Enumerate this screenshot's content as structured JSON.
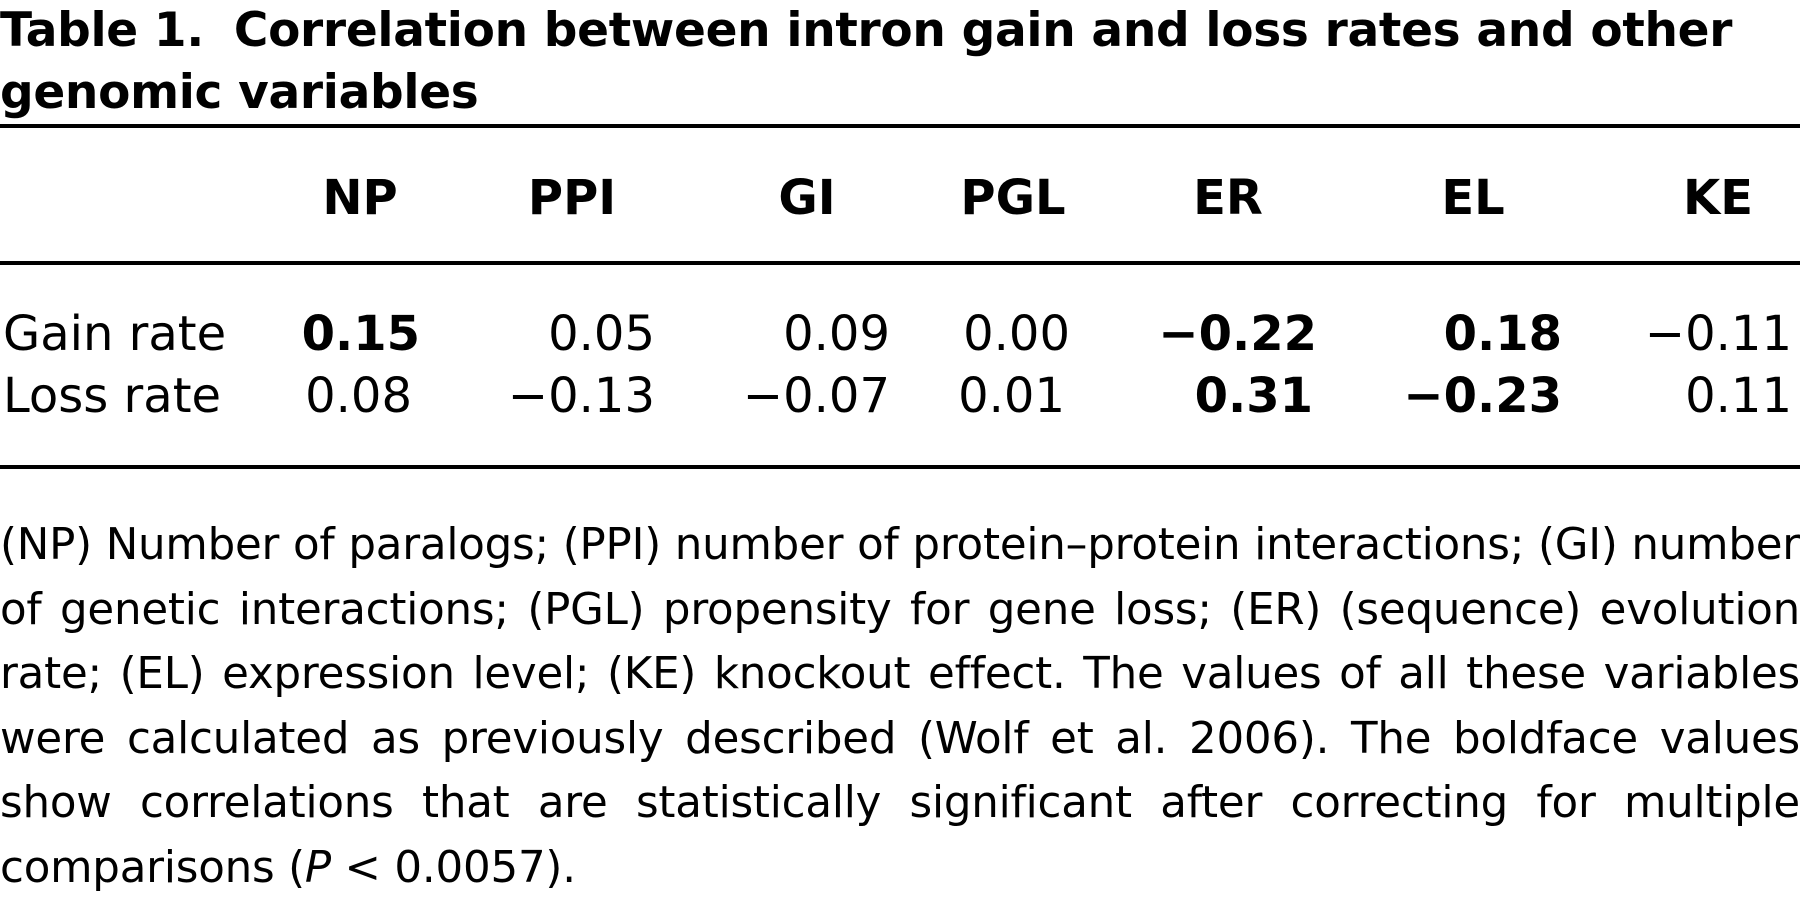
{
  "caption": {
    "label": "Table 1.",
    "title": "Correlation between intron gain and loss rates and other genomic variables"
  },
  "table": {
    "columns": [
      "NP",
      "PPI",
      "GI",
      "PGL",
      "ER",
      "EL",
      "KE"
    ],
    "rows": [
      {
        "label": "Gain rate",
        "values": [
          "0.15",
          "0.05",
          "0.09",
          "0.00",
          "−0.22",
          "0.18",
          "−0.11"
        ],
        "significant": [
          true,
          false,
          false,
          false,
          true,
          true,
          false
        ]
      },
      {
        "label": "Loss rate",
        "values": [
          "0.08",
          "−0.13",
          "−0.07",
          "0.01",
          "0.31",
          "−0.23",
          "0.11"
        ],
        "significant": [
          false,
          false,
          false,
          false,
          true,
          true,
          false
        ]
      }
    ]
  },
  "footnote": {
    "text_before": "(NP) Number of paralogs; (PPI) number of protein–protein interactions; (GI) number of genetic interactions; (PGL) propensity for gene loss; (ER) (sequence) evolution rate; (EL) expression level; (KE) knockout effect. The values of all these variables were calculated as previously described (Wolf et al. 2006). The boldface values show correlations that are statistically significant after correcting for multiple comparisons (",
    "p_symbol": "P",
    "text_after": " < 0.0057)."
  }
}
